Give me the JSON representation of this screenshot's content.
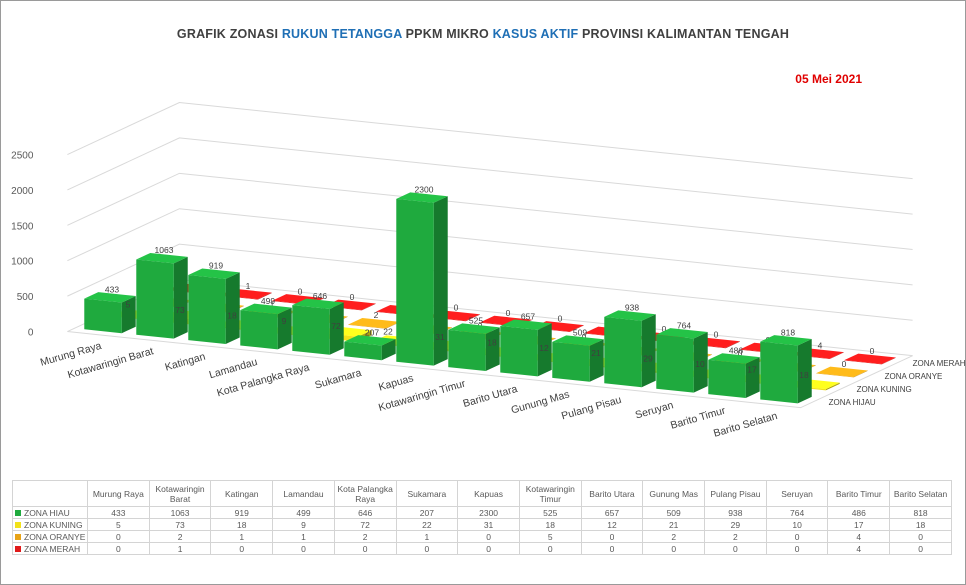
{
  "header": {
    "title_parts": [
      "GRAFIK ZONASI ",
      "RUKUN TETANGGA",
      " PPKM MIKRO ",
      "KASUS AKTIF",
      " PROVINSI KALIMANTAN TENGAH"
    ],
    "date": "05 Mei 2021"
  },
  "chart_data": {
    "type": "bar",
    "categories": [
      "Murung Raya",
      "Kotawaringin Barat",
      "Katingan",
      "Lamandau",
      "Kota Palangka Raya",
      "Sukamara",
      "Kapuas",
      "Kotawaringin Timur",
      "Barito Utara",
      "Gunung Mas",
      "Pulang Pisau",
      "Seruyan",
      "Barito Timur",
      "Barito Selatan"
    ],
    "table_headers": [
      "Murung Raya",
      "Kotawaringin Barat",
      "Katingan",
      "Lamandau",
      "Kota Palangka Raya",
      "Sukamara",
      "Kapuas",
      "Kotawaringin Timur",
      "Barito Utara",
      "Gunung Mas",
      "Pulang Pisau",
      "Seruyan",
      "Barito Timur",
      "Barito Selatan"
    ],
    "series": [
      {
        "name": "ZONA HIJAU",
        "label": "ZONA HIJAU",
        "legend": "ZONA HIAU",
        "color": "#1faa3e",
        "values": [
          433,
          1063,
          919,
          499,
          646,
          207,
          2300,
          525,
          657,
          509,
          938,
          764,
          486,
          818
        ]
      },
      {
        "name": "ZONA KUNING",
        "label": "ZONA KUNING",
        "legend": "ZONA KUNING",
        "color": "#f2e21a",
        "values": [
          5,
          73,
          18,
          9,
          72,
          22,
          31,
          18,
          12,
          21,
          29,
          10,
          17,
          18
        ]
      },
      {
        "name": "ZONA ORANYE",
        "label": "ZONA ORANYE",
        "legend": "ZONA ORANYE",
        "color": "#e8a317",
        "values": [
          0,
          2,
          1,
          1,
          2,
          1,
          0,
          5,
          0,
          2,
          2,
          0,
          4,
          0
        ]
      },
      {
        "name": "ZONA MERAH",
        "label": "ZONA MERAH",
        "legend": "ZONA MERAH",
        "color": "#e01a1a",
        "values": [
          0,
          1,
          0,
          0,
          0,
          0,
          0,
          0,
          0,
          0,
          0,
          0,
          4,
          0
        ]
      }
    ],
    "y_ticks": [
      0,
      500,
      1000,
      1500,
      2000,
      2500
    ],
    "ylim": [
      0,
      2500
    ],
    "grid": true
  }
}
